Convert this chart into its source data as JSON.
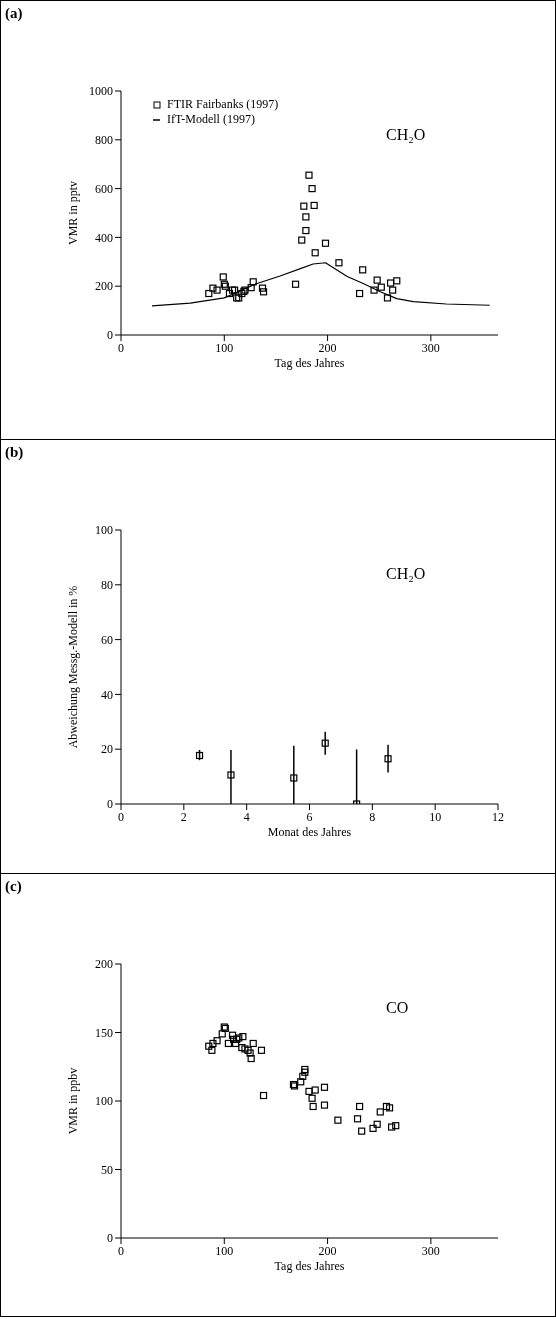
{
  "chart_data": [
    {
      "type": "scatter",
      "title": "(a)",
      "xlabel": "Tag des Jahres",
      "ylabel": "VMR in pptv",
      "xlim": [
        0,
        365
      ],
      "xticks": [
        0,
        100,
        200,
        300
      ],
      "ylim": [
        0,
        1000
      ],
      "yticks": [
        0,
        200,
        400,
        600,
        800,
        1000
      ],
      "legend": "top left",
      "annotations": [
        "CH₂O"
      ],
      "series": [
        {
          "name": "FTIR Fairbanks (1997)",
          "marker": "square",
          "color": "#000000",
          "x": [
            85,
            89,
            93,
            99,
            100,
            101,
            105,
            108,
            110,
            112,
            114,
            117,
            119,
            120,
            126,
            128,
            137,
            138,
            169,
            175,
            177,
            179,
            179,
            182,
            185,
            187,
            188,
            198,
            211,
            231,
            234,
            245,
            248,
            252,
            258,
            261,
            263,
            267
          ],
          "values": [
            170,
            192,
            184,
            238,
            208,
            200,
            170,
            184,
            184,
            152,
            152,
            170,
            179,
            184,
            194,
            218,
            192,
            177,
            208,
            389,
            528,
            428,
            484,
            655,
            600,
            531,
            337,
            376,
            296,
            170,
            267,
            184,
            225,
            196,
            152,
            213,
            184,
            222
          ]
        },
        {
          "name": "IfT-Modell (1997)",
          "type": "line",
          "color": "#000000",
          "x": [
            30,
            67,
            100,
            131,
            154,
            175,
            186,
            198,
            201,
            219,
            235,
            251,
            267,
            283,
            315,
            357
          ],
          "values": [
            119,
            131,
            152,
            210,
            242,
            274,
            291,
            296,
            288,
            240,
            210,
            177,
            149,
            137,
            127,
            122
          ]
        }
      ]
    },
    {
      "type": "scatter",
      "title": "(b)",
      "xlabel": "Monat des Jahres",
      "ylabel": "Abweichung Messg.-Modell in %",
      "xlim": [
        0,
        12
      ],
      "xticks": [
        0,
        2,
        4,
        6,
        8,
        10,
        12
      ],
      "ylim": [
        0,
        100
      ],
      "yticks": [
        0,
        20,
        40,
        60,
        80,
        100
      ],
      "marker": "square",
      "annotations": [
        "CH₂O"
      ],
      "series": [
        {
          "color": "#000000",
          "x": [
            2.5,
            3.5,
            5.5,
            6.5,
            7.5,
            8.5
          ],
          "values": [
            17.7,
            10.6,
            9.5,
            22.2,
            0,
            16.5
          ],
          "errors": [
            [
              16,
              19.7
            ],
            [
              0,
              19.7
            ],
            [
              0,
              21.3
            ],
            [
              18,
              26.4
            ],
            [
              0,
              19.9
            ],
            [
              11.5,
              21.6
            ]
          ]
        }
      ]
    },
    {
      "type": "scatter",
      "title": "(c)",
      "xlabel": "Tag des Jahres",
      "ylabel": "VMR in ppbv",
      "xlim": [
        0,
        365
      ],
      "xticks": [
        0,
        100,
        200,
        300
      ],
      "ylim": [
        0,
        200
      ],
      "yticks": [
        0,
        50,
        100,
        150,
        200
      ],
      "marker": "square",
      "annotations": [
        "CO"
      ],
      "series": [
        {
          "color": "#000000",
          "x": [
            85,
            88,
            89,
            93,
            98,
            100,
            101,
            104,
            108,
            109,
            111,
            112,
            114,
            117,
            118,
            120,
            123,
            125,
            126,
            128,
            136,
            138,
            167,
            168,
            174,
            176,
            178,
            178,
            182,
            185,
            186,
            188,
            197,
            197,
            210,
            229,
            231,
            233,
            244,
            248,
            251,
            257,
            260,
            262,
            266
          ],
          "values": [
            140,
            137,
            142,
            144,
            149,
            154,
            153,
            142,
            148,
            145,
            142,
            145,
            146,
            139,
            147,
            138,
            137,
            135,
            131,
            142,
            137,
            104,
            112,
            111,
            114,
            118,
            121,
            123,
            107,
            102,
            96,
            108,
            110,
            97,
            86,
            87,
            96,
            78,
            80,
            83,
            92,
            96,
            95,
            81,
            82
          ]
        }
      ]
    }
  ]
}
